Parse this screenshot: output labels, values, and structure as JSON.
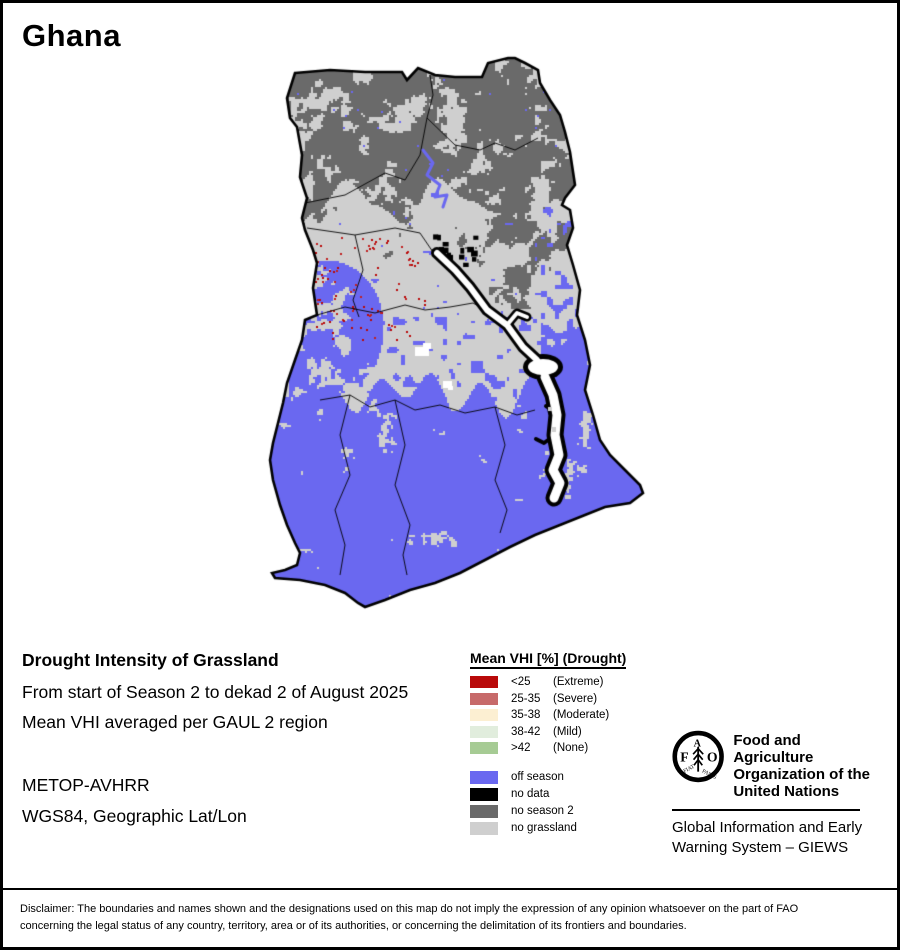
{
  "title": "Ghana",
  "info": {
    "heading": "Drought Intensity of Grassland",
    "line1": "From start of Season 2 to dekad 2 of August 2025",
    "line2": "Mean VHI averaged per GAUL 2 region",
    "sensor": "METOP-AVHRR",
    "projection": "WGS84, Geographic Lat/Lon"
  },
  "legend": {
    "title": "Mean VHI [%] (Drought)",
    "drought_classes": [
      {
        "range": "<25",
        "label": "(Extreme)",
        "color": "#b90909"
      },
      {
        "range": "25-35",
        "label": "(Severe)",
        "color": "#c76a6a"
      },
      {
        "range": "35-38",
        "label": "(Moderate)",
        "color": "#fcefd2"
      },
      {
        "range": "38-42",
        "label": "(Mild)",
        "color": "#e1eddd"
      },
      {
        "range": ">42",
        "label": "(None)",
        "color": "#a6cb94"
      }
    ],
    "season_classes": [
      {
        "label": "off season",
        "color": "#6a68f0"
      },
      {
        "label": "no data",
        "color": "#000000"
      },
      {
        "label": "no season 2",
        "color": "#6a6a6a"
      },
      {
        "label": "no grassland",
        "color": "#cfcfcf"
      }
    ]
  },
  "footer_org": {
    "fao_name": "Food and Agriculture\nOrganization of the\nUnited Nations",
    "fao_motto": "FIAT PANIS",
    "fao_letters": {
      "f": "F",
      "a": "A",
      "o": "O"
    },
    "giews": "Global Information and Early\nWarning System – GIEWS"
  },
  "disclaimer": "Disclaimer: The boundaries and names shown and the designations used on this map do not imply the expression of any opinion whatsoever on the part of FAO concerning the legal status of any country, territory, area or of its authorities, or concerning the delimitation of its frontiers and boundaries."
}
